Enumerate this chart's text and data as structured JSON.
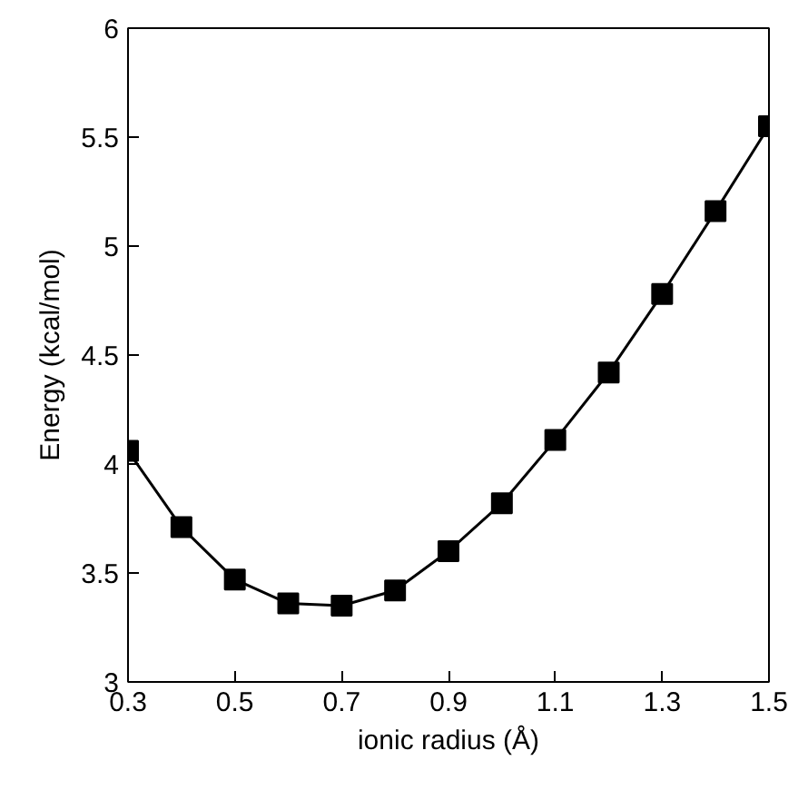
{
  "chart_data": {
    "type": "line",
    "xlabel": "ionic radius (Å)",
    "ylabel": "Energy (kcal/mol)",
    "x": [
      0.3,
      0.4,
      0.5,
      0.6,
      0.7,
      0.8,
      0.9,
      1.0,
      1.1,
      1.2,
      1.3,
      1.4,
      1.5
    ],
    "series": [
      {
        "color": "#000000",
        "values": [
          4.06,
          3.71,
          3.47,
          3.36,
          3.35,
          3.42,
          3.6,
          3.82,
          4.11,
          4.42,
          4.78,
          5.16,
          5.55
        ]
      }
    ],
    "xlim": [
      0.3,
      1.5
    ],
    "ylim": [
      3,
      6
    ],
    "xticks": [
      0.3,
      0.5,
      0.7,
      0.9,
      1.1,
      1.3,
      1.5
    ],
    "yticks": [
      3,
      3.5,
      4,
      4.5,
      5,
      5.5,
      6
    ],
    "grid": false,
    "marker": "square",
    "line_style": "solid"
  }
}
